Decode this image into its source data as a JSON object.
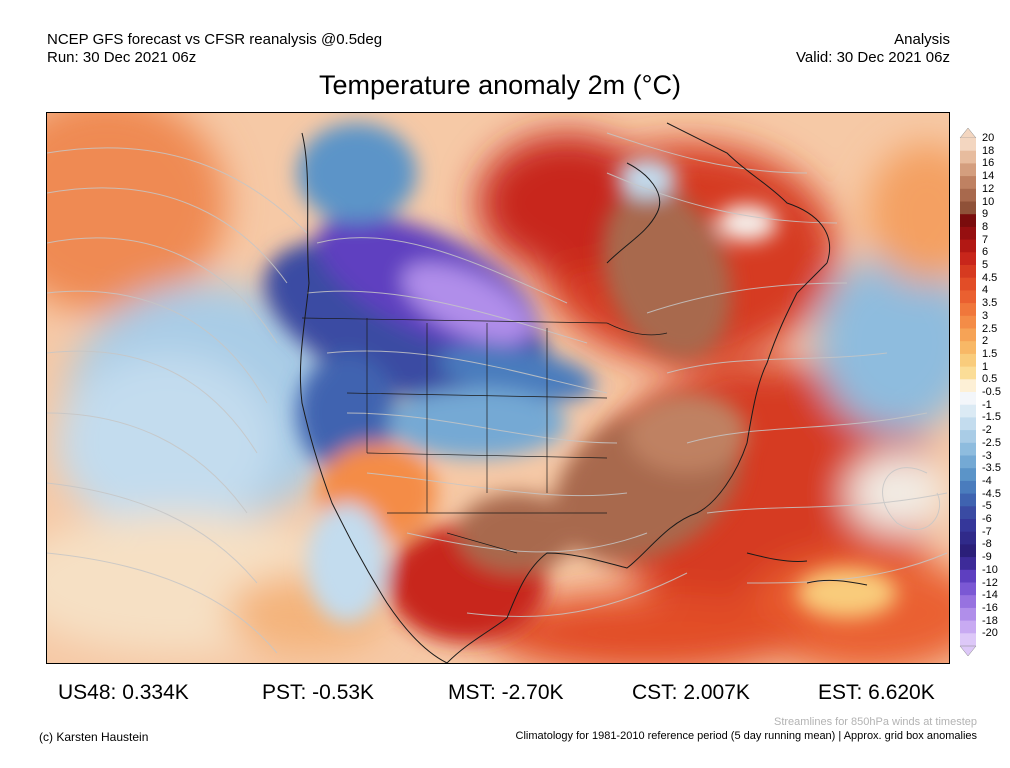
{
  "header": {
    "left_line1": "NCEP GFS forecast vs CFSR reanalysis @0.5deg",
    "left_line2": "Run: 30 Dec 2021 06z",
    "right_line1": "Analysis",
    "right_line2": "Valid: 30 Dec 2021 06z"
  },
  "title": "Temperature anomaly 2m (°C)",
  "colorbar": {
    "labels": [
      "20",
      "18",
      "16",
      "14",
      "12",
      "10",
      "9",
      "8",
      "7",
      "6",
      "5",
      "4.5",
      "4",
      "3.5",
      "3",
      "2.5",
      "2",
      "1.5",
      "1",
      "0.5",
      "-0.5",
      "-1",
      "-1.5",
      "-2",
      "-2.5",
      "-3",
      "-3.5",
      "-4",
      "-4.5",
      "-5",
      "-6",
      "-7",
      "-8",
      "-9",
      "-10",
      "-12",
      "-14",
      "-16",
      "-18",
      "-20"
    ],
    "colors": [
      "#f3d6c0",
      "#e7bc9e",
      "#d49e7e",
      "#bf8162",
      "#a8694d",
      "#8f5138",
      "#7a0c0c",
      "#960f10",
      "#b21814",
      "#c8261b",
      "#d63a20",
      "#e24d27",
      "#ea6030",
      "#f0773b",
      "#f48c47",
      "#f6a356",
      "#f8b866",
      "#f9cc7c",
      "#fbdd97",
      "#fdf0d6",
      "#f3f6fa",
      "#dbeaf4",
      "#c3dcee",
      "#a9cce6",
      "#8ebcde",
      "#74a9d4",
      "#5b94c8",
      "#4a7cbd",
      "#3f63b0",
      "#3a4ba3",
      "#35379a",
      "#302a8a",
      "#2b1f79",
      "#3d2b99",
      "#5e3fc0",
      "#7b58d4",
      "#9772e0",
      "#b08eea",
      "#c8aaf2",
      "#ddc8f8"
    ]
  },
  "stats": {
    "us48": "US48: 0.334K",
    "pst": "PST: -0.53K",
    "mst": "MST: -2.70K",
    "cst": "CST: 2.007K",
    "est": "EST: 6.620K"
  },
  "footer": {
    "streamlines_note": "Streamlines for 850hPa winds at timestep",
    "credit": "(c) Karsten Haustein",
    "climatology_note": "Climatology for 1981-2010 reference period (5 day running mean) | Approx. grid box anomalies"
  }
}
